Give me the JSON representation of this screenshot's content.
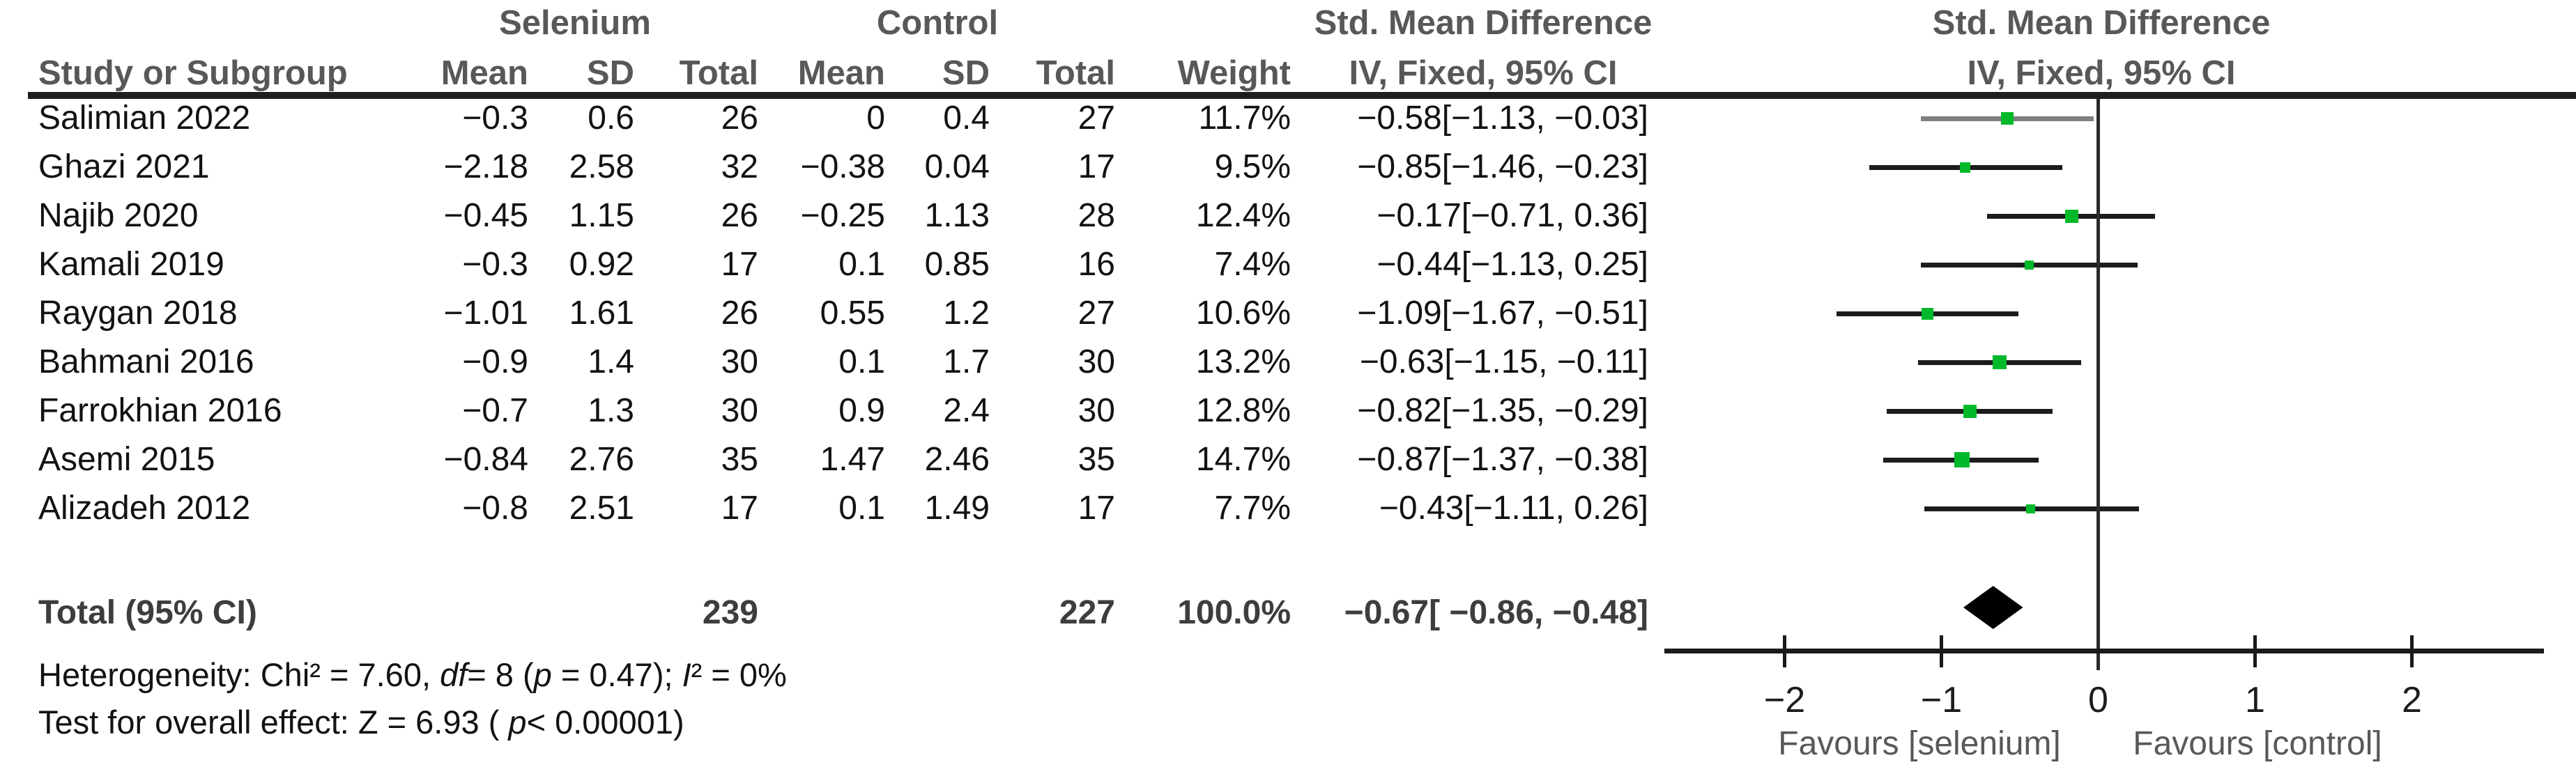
{
  "headers": {
    "group_selenium": "Selenium",
    "group_control": "Control",
    "smd_left": "Std. Mean Difference",
    "smd_right": "Std. Mean Difference",
    "study": "Study or Subgroup",
    "mean1": "Mean",
    "sd1": "SD",
    "total1": "Total",
    "mean2": "Mean",
    "sd2": "SD",
    "total2": "Total",
    "weight": "Weight",
    "iv_left": "IV, Fixed, 95% CI",
    "iv_right": "IV, Fixed, 95% CI"
  },
  "chart_data": {
    "type": "forest",
    "effect_measure": "Std. Mean Difference",
    "method": "IV, Fixed, 95% CI",
    "x_ticks": [
      -2,
      -1,
      0,
      1,
      2
    ],
    "x_range": [
      -2.8,
      2.85
    ],
    "favours_left": "Favours [selenium]",
    "favours_right": "Favours [control]",
    "studies": [
      {
        "name": "Salimian 2022",
        "sel_mean": "−0.3",
        "sel_sd": "0.6",
        "sel_total": "26",
        "ctrl_mean": "0",
        "ctrl_sd": "0.4",
        "ctrl_total": "27",
        "weight": "11.7%",
        "weight_value": 11.7,
        "ci_text": "−0.58[−1.13, −0.03]",
        "est": -0.58,
        "lo": -1.13,
        "hi": -0.03,
        "line_shade": "dim"
      },
      {
        "name": "Ghazi 2021",
        "sel_mean": "−2.18",
        "sel_sd": "2.58",
        "sel_total": "32",
        "ctrl_mean": "−0.38",
        "ctrl_sd": "0.04",
        "ctrl_total": "17",
        "weight": "9.5%",
        "weight_value": 9.5,
        "ci_text": "−0.85[−1.46, −0.23]",
        "est": -0.85,
        "lo": -1.46,
        "hi": -0.23,
        "line_shade": "normal"
      },
      {
        "name": "Najib 2020",
        "sel_mean": "−0.45",
        "sel_sd": "1.15",
        "sel_total": "26",
        "ctrl_mean": "−0.25",
        "ctrl_sd": "1.13",
        "ctrl_total": "28",
        "weight": "12.4%",
        "weight_value": 12.4,
        "ci_text": "−0.17[−0.71, 0.36]",
        "est": -0.17,
        "lo": -0.71,
        "hi": 0.36,
        "line_shade": "normal"
      },
      {
        "name": "Kamali 2019",
        "sel_mean": "−0.3",
        "sel_sd": "0.92",
        "sel_total": "17",
        "ctrl_mean": "0.1",
        "ctrl_sd": "0.85",
        "ctrl_total": "16",
        "weight": "7.4%",
        "weight_value": 7.4,
        "ci_text": "−0.44[−1.13, 0.25]",
        "est": -0.44,
        "lo": -1.13,
        "hi": 0.25,
        "line_shade": "normal"
      },
      {
        "name": "Raygan 2018",
        "sel_mean": "−1.01",
        "sel_sd": "1.61",
        "sel_total": "26",
        "ctrl_mean": "0.55",
        "ctrl_sd": "1.2",
        "ctrl_total": "27",
        "weight": "10.6%",
        "weight_value": 10.6,
        "ci_text": "−1.09[−1.67, −0.51]",
        "est": -1.09,
        "lo": -1.67,
        "hi": -0.51,
        "line_shade": "normal"
      },
      {
        "name": "Bahmani 2016",
        "sel_mean": "−0.9",
        "sel_sd": "1.4",
        "sel_total": "30",
        "ctrl_mean": "0.1",
        "ctrl_sd": "1.7",
        "ctrl_total": "30",
        "weight": "13.2%",
        "weight_value": 13.2,
        "ci_text": "−0.63[−1.15, −0.11]",
        "est": -0.63,
        "lo": -1.15,
        "hi": -0.11,
        "line_shade": "normal"
      },
      {
        "name": "Farrokhian 2016",
        "sel_mean": "−0.7",
        "sel_sd": "1.3",
        "sel_total": "30",
        "ctrl_mean": "0.9",
        "ctrl_sd": "2.4",
        "ctrl_total": "30",
        "weight": "12.8%",
        "weight_value": 12.8,
        "ci_text": "−0.82[−1.35, −0.29]",
        "est": -0.82,
        "lo": -1.35,
        "hi": -0.29,
        "line_shade": "normal"
      },
      {
        "name": "Asemi 2015",
        "sel_mean": "−0.84",
        "sel_sd": "2.76",
        "sel_total": "35",
        "ctrl_mean": "1.47",
        "ctrl_sd": "2.46",
        "ctrl_total": "35",
        "weight": "14.7%",
        "weight_value": 14.7,
        "ci_text": "−0.87[−1.37, −0.38]",
        "est": -0.87,
        "lo": -1.37,
        "hi": -0.38,
        "line_shade": "normal"
      },
      {
        "name": "Alizadeh 2012",
        "sel_mean": "−0.8",
        "sel_sd": "2.51",
        "sel_total": "17",
        "ctrl_mean": "0.1",
        "ctrl_sd": "1.49",
        "ctrl_total": "17",
        "weight": "7.7%",
        "weight_value": 7.7,
        "ci_text": "−0.43[−1.11, 0.26]",
        "est": -0.43,
        "lo": -1.11,
        "hi": 0.26,
        "line_shade": "normal"
      }
    ],
    "total": {
      "label": "Total (95% CI)",
      "sel_total": "239",
      "ctrl_total": "227",
      "weight": "100.0%",
      "ci_text": "−0.67[ −0.86,  −0.48]",
      "est": -0.67,
      "lo": -0.86,
      "hi": -0.48
    },
    "footnotes": [
      {
        "runs": [
          {
            "t": "Heterogeneity: Chi² = 7.60, "
          },
          {
            "t": "df",
            "i": true
          },
          {
            "t": "= 8 ("
          },
          {
            "t": "p",
            "i": true
          },
          {
            "t": " = 0.47); "
          },
          {
            "t": "I",
            "i": true
          },
          {
            "t": "² = 0%"
          }
        ]
      },
      {
        "runs": [
          {
            "t": "Test for overall effect: Z = 6.93 ( "
          },
          {
            "t": "p",
            "i": true
          },
          {
            "t": "< 0.00001)"
          }
        ]
      }
    ]
  },
  "colors": {
    "header_text": "#58585a",
    "body_text": "#121212",
    "marker_green": "#00b92b",
    "ci_line": "#1c1c1c",
    "ci_line_dim": "#7f7f7f",
    "diamond": "#000000",
    "zero_line": "#2a2a2a",
    "axis": "#1a1a1a"
  }
}
